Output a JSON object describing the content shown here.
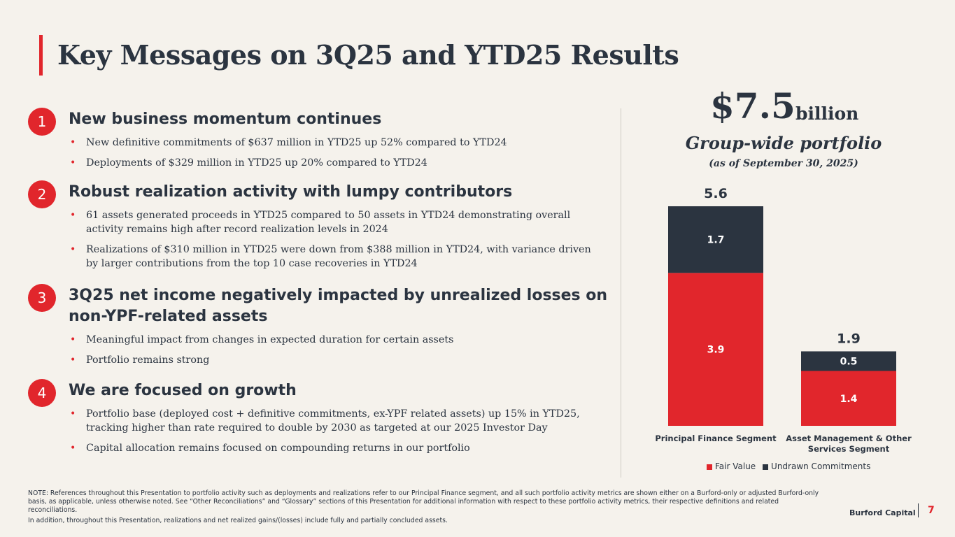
{
  "title": "Key Messages on 3Q25 and YTD25 Results",
  "messages": [
    {
      "number": "1",
      "heading": "New business momentum continues",
      "bullets": [
        "New definitive commitments of $637 million in YTD25 up 52% compared to YTD24",
        "Deployments of $329 million in YTD25 up 20% compared to YTD24"
      ]
    },
    {
      "number": "2",
      "heading": "Robust realization activity with lumpy contributors",
      "bullets": [
        "61 assets generated proceeds in YTD25 compared to 50 assets in YTD24 demonstrating overall activity remains high after record realization levels in 2024",
        "Realizations of $310 million in YTD25 were down from $388 million in YTD24, with variance driven by larger contributions from the top 10 case recoveries in YTD24"
      ]
    },
    {
      "number": "3",
      "heading": "3Q25 net income negatively impacted by unrealized losses on non-YPF-related assets",
      "bullets": [
        "Meaningful impact from changes in expected duration for certain assets",
        "Portfolio remains strong"
      ]
    },
    {
      "number": "4",
      "heading": "We are focused on growth",
      "bullets": [
        "Portfolio base (deployed cost + definitive commitments, ex-YPF related assets) up 15% in YTD25, tracking higher than rate required to double by 2030 as targeted at our 2025 Investor Day",
        "Capital allocation remains focused on compounding returns in our portfolio"
      ]
    }
  ],
  "portfolio": {
    "value": "$7.5",
    "unit": "billion",
    "label": "Group-wide portfolio",
    "date": "(as of September 30, 2025)"
  },
  "chart_data": {
    "type": "bar",
    "stacked": true,
    "categories": [
      "Principal Finance Segment",
      "Asset Management & Other Services Segment"
    ],
    "category_lines": [
      [
        "Principal Finance Segment"
      ],
      [
        "Asset Management & Other",
        "Services Segment"
      ]
    ],
    "series": [
      {
        "name": "Fair Value",
        "values": [
          3.9,
          1.4
        ],
        "color": "#e1262c",
        "labels": [
          "3.9",
          "1.4"
        ]
      },
      {
        "name": "Undrawn Commitments",
        "values": [
          1.7,
          0.5
        ],
        "color": "#2b3440",
        "labels": [
          "1.7",
          "0.5"
        ]
      }
    ],
    "totals": [
      5.6,
      1.9
    ],
    "total_labels": [
      "5.6",
      "1.9"
    ],
    "ylim": [
      0,
      5.6
    ],
    "title": "",
    "xlabel": "",
    "ylabel": "",
    "legend_position": "bottom"
  },
  "notes": [
    "NOTE: References throughout this Presentation to portfolio activity such as deployments and realizations refer to our Principal Finance segment, and all such portfolio activity metrics are shown either on a Burford-only or adjusted Burford-only basis, as applicable, unless otherwise noted. See “Other Reconciliations” and “Glossary” sections of this Presentation for additional information with respect to these portfolio activity metrics, their respective definitions and related reconciliations.",
    "In addition, throughout this Presentation, realizations and net realized gains/(losses) include fully and partially concluded assets."
  ],
  "footer": {
    "brand": "Burford Capital",
    "page": "7"
  },
  "colors": {
    "accent": "#e1262c",
    "navy": "#2b3440",
    "background": "#f5f2ec"
  }
}
